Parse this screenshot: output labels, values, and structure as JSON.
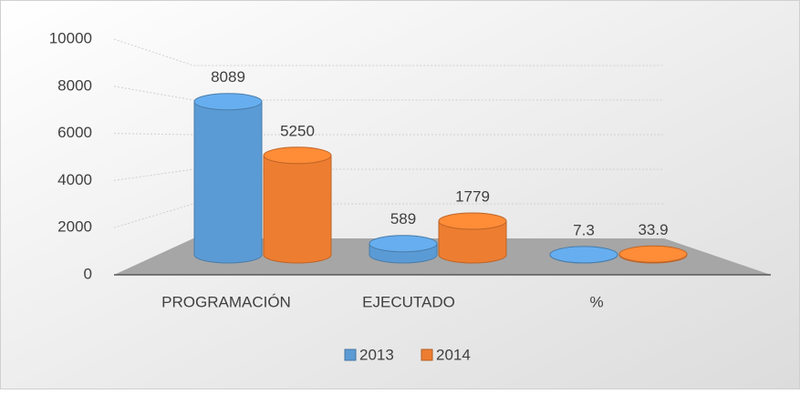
{
  "chart_data": {
    "type": "bar3d",
    "categories": [
      "PROGRAMACIÓN",
      "EJECUTADO",
      "%"
    ],
    "series": [
      {
        "name": "2013",
        "color": "#5b9bd5",
        "values": [
          8089,
          589,
          7.3
        ]
      },
      {
        "name": "2014",
        "color": "#ed7d31",
        "values": [
          5250,
          1779,
          33.9
        ]
      }
    ],
    "ylim": [
      0,
      10000
    ],
    "yticks": [
      0,
      2000,
      4000,
      6000,
      8000,
      10000
    ],
    "grid": true,
    "legend": "bottom"
  }
}
